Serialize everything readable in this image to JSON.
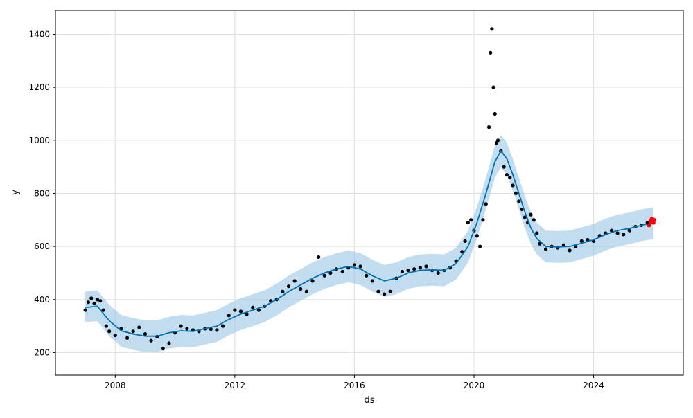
{
  "chart_data": {
    "type": "scatter",
    "xlabel": "ds",
    "ylabel": "y",
    "xlim": [
      2006.0,
      2027.0
    ],
    "ylim": [
      115,
      1490
    ],
    "x_ticks": [
      2008,
      2012,
      2016,
      2020,
      2024
    ],
    "x_tick_labels": [
      "2008",
      "2012",
      "2016",
      "2020",
      "2024"
    ],
    "y_ticks": [
      200,
      400,
      600,
      800,
      1000,
      1200,
      1400
    ],
    "y_tick_labels": [
      "200",
      "400",
      "600",
      "800",
      "1000",
      "1200",
      "1400"
    ],
    "grid": true,
    "legend": "none",
    "colors": {
      "observed": "#000000",
      "forecast_line": "#0072B2",
      "uncertainty_band": "#92C1E3",
      "recent": "#ff0000"
    },
    "series": [
      {
        "name": "",
        "kind": "observed-points",
        "points": [
          [
            2007.0,
            360
          ],
          [
            2007.1,
            390
          ],
          [
            2007.2,
            405
          ],
          [
            2007.3,
            385
          ],
          [
            2007.4,
            400
          ],
          [
            2007.5,
            395
          ],
          [
            2007.6,
            360
          ],
          [
            2007.7,
            300
          ],
          [
            2007.8,
            280
          ],
          [
            2008.0,
            265
          ],
          [
            2008.2,
            290
          ],
          [
            2008.4,
            255
          ],
          [
            2008.6,
            280
          ],
          [
            2008.8,
            295
          ],
          [
            2009.0,
            270
          ],
          [
            2009.2,
            245
          ],
          [
            2009.4,
            260
          ],
          [
            2009.6,
            215
          ],
          [
            2009.8,
            235
          ],
          [
            2010.0,
            275
          ],
          [
            2010.2,
            300
          ],
          [
            2010.4,
            290
          ],
          [
            2010.6,
            285
          ],
          [
            2010.8,
            280
          ],
          [
            2011.0,
            290
          ],
          [
            2011.2,
            288
          ],
          [
            2011.4,
            285
          ],
          [
            2011.6,
            300
          ],
          [
            2011.8,
            340
          ],
          [
            2012.0,
            360
          ],
          [
            2012.2,
            355
          ],
          [
            2012.4,
            345
          ],
          [
            2012.6,
            370
          ],
          [
            2012.8,
            360
          ],
          [
            2013.0,
            375
          ],
          [
            2013.2,
            395
          ],
          [
            2013.4,
            400
          ],
          [
            2013.6,
            430
          ],
          [
            2013.8,
            450
          ],
          [
            2014.0,
            470
          ],
          [
            2014.2,
            440
          ],
          [
            2014.4,
            430
          ],
          [
            2014.6,
            470
          ],
          [
            2014.8,
            560
          ],
          [
            2015.0,
            490
          ],
          [
            2015.2,
            500
          ],
          [
            2015.4,
            515
          ],
          [
            2015.6,
            505
          ],
          [
            2015.8,
            520
          ],
          [
            2016.0,
            530
          ],
          [
            2016.2,
            525
          ],
          [
            2016.4,
            490
          ],
          [
            2016.6,
            470
          ],
          [
            2016.8,
            430
          ],
          [
            2017.0,
            420
          ],
          [
            2017.2,
            430
          ],
          [
            2017.4,
            480
          ],
          [
            2017.6,
            505
          ],
          [
            2017.8,
            510
          ],
          [
            2018.0,
            515
          ],
          [
            2018.2,
            520
          ],
          [
            2018.4,
            525
          ],
          [
            2018.6,
            510
          ],
          [
            2018.8,
            500
          ],
          [
            2019.0,
            510
          ],
          [
            2019.2,
            520
          ],
          [
            2019.4,
            545
          ],
          [
            2019.6,
            580
          ],
          [
            2019.7,
            620
          ],
          [
            2019.8,
            690
          ],
          [
            2019.9,
            700
          ],
          [
            2020.0,
            660
          ],
          [
            2020.1,
            640
          ],
          [
            2020.2,
            600
          ],
          [
            2020.3,
            700
          ],
          [
            2020.4,
            760
          ],
          [
            2020.5,
            1050
          ],
          [
            2020.55,
            1330
          ],
          [
            2020.6,
            1420
          ],
          [
            2020.65,
            1200
          ],
          [
            2020.7,
            1100
          ],
          [
            2020.75,
            990
          ],
          [
            2020.8,
            1000
          ],
          [
            2020.9,
            960
          ],
          [
            2021.0,
            900
          ],
          [
            2021.1,
            870
          ],
          [
            2021.2,
            860
          ],
          [
            2021.3,
            830
          ],
          [
            2021.4,
            800
          ],
          [
            2021.5,
            770
          ],
          [
            2021.6,
            740
          ],
          [
            2021.7,
            710
          ],
          [
            2021.8,
            690
          ],
          [
            2021.9,
            720
          ],
          [
            2022.0,
            700
          ],
          [
            2022.1,
            650
          ],
          [
            2022.2,
            610
          ],
          [
            2022.4,
            590
          ],
          [
            2022.6,
            600
          ],
          [
            2022.8,
            595
          ],
          [
            2023.0,
            605
          ],
          [
            2023.2,
            585
          ],
          [
            2023.4,
            600
          ],
          [
            2023.6,
            620
          ],
          [
            2023.8,
            625
          ],
          [
            2024.0,
            620
          ],
          [
            2024.2,
            640
          ],
          [
            2024.4,
            650
          ],
          [
            2024.6,
            660
          ],
          [
            2024.8,
            650
          ],
          [
            2025.0,
            645
          ],
          [
            2025.2,
            660
          ],
          [
            2025.4,
            675
          ],
          [
            2025.6,
            680
          ],
          [
            2025.8,
            690
          ],
          [
            2025.9,
            695
          ]
        ]
      },
      {
        "name": "",
        "kind": "forecast-line",
        "points": [
          [
            2007.0,
            370
          ],
          [
            2007.4,
            375
          ],
          [
            2007.8,
            320
          ],
          [
            2008.2,
            282
          ],
          [
            2008.6,
            270
          ],
          [
            2009.0,
            262
          ],
          [
            2009.4,
            262
          ],
          [
            2009.8,
            275
          ],
          [
            2010.2,
            282
          ],
          [
            2010.6,
            280
          ],
          [
            2011.0,
            290
          ],
          [
            2011.4,
            300
          ],
          [
            2011.8,
            325
          ],
          [
            2012.2,
            345
          ],
          [
            2012.6,
            360
          ],
          [
            2013.0,
            375
          ],
          [
            2013.4,
            400
          ],
          [
            2013.8,
            430
          ],
          [
            2014.2,
            455
          ],
          [
            2014.6,
            480
          ],
          [
            2015.0,
            500
          ],
          [
            2015.4,
            515
          ],
          [
            2015.8,
            525
          ],
          [
            2016.2,
            515
          ],
          [
            2016.6,
            490
          ],
          [
            2017.0,
            470
          ],
          [
            2017.4,
            480
          ],
          [
            2017.8,
            500
          ],
          [
            2018.2,
            510
          ],
          [
            2018.6,
            512
          ],
          [
            2019.0,
            510
          ],
          [
            2019.4,
            535
          ],
          [
            2019.8,
            600
          ],
          [
            2020.1,
            690
          ],
          [
            2020.4,
            800
          ],
          [
            2020.7,
            920
          ],
          [
            2020.9,
            960
          ],
          [
            2021.1,
            930
          ],
          [
            2021.3,
            870
          ],
          [
            2021.5,
            800
          ],
          [
            2021.7,
            730
          ],
          [
            2021.9,
            670
          ],
          [
            2022.1,
            630
          ],
          [
            2022.4,
            600
          ],
          [
            2022.8,
            598
          ],
          [
            2023.2,
            600
          ],
          [
            2023.6,
            612
          ],
          [
            2024.0,
            625
          ],
          [
            2024.4,
            645
          ],
          [
            2024.8,
            660
          ],
          [
            2025.2,
            668
          ],
          [
            2025.6,
            680
          ],
          [
            2026.0,
            688
          ]
        ]
      },
      {
        "name": "",
        "kind": "uncertainty-band",
        "upper": [
          [
            2007.0,
            430
          ],
          [
            2007.4,
            435
          ],
          [
            2007.8,
            380
          ],
          [
            2008.2,
            342
          ],
          [
            2008.6,
            330
          ],
          [
            2009.0,
            322
          ],
          [
            2009.4,
            322
          ],
          [
            2009.8,
            335
          ],
          [
            2010.2,
            342
          ],
          [
            2010.6,
            340
          ],
          [
            2011.0,
            350
          ],
          [
            2011.4,
            360
          ],
          [
            2011.8,
            385
          ],
          [
            2012.2,
            405
          ],
          [
            2012.6,
            420
          ],
          [
            2013.0,
            435
          ],
          [
            2013.4,
            460
          ],
          [
            2013.8,
            490
          ],
          [
            2014.2,
            515
          ],
          [
            2014.6,
            540
          ],
          [
            2015.0,
            560
          ],
          [
            2015.4,
            575
          ],
          [
            2015.8,
            585
          ],
          [
            2016.2,
            575
          ],
          [
            2016.6,
            550
          ],
          [
            2017.0,
            530
          ],
          [
            2017.4,
            540
          ],
          [
            2017.8,
            560
          ],
          [
            2018.2,
            570
          ],
          [
            2018.6,
            572
          ],
          [
            2019.0,
            570
          ],
          [
            2019.4,
            595
          ],
          [
            2019.8,
            660
          ],
          [
            2020.1,
            750
          ],
          [
            2020.4,
            860
          ],
          [
            2020.7,
            980
          ],
          [
            2020.9,
            1020
          ],
          [
            2021.1,
            990
          ],
          [
            2021.3,
            930
          ],
          [
            2021.5,
            860
          ],
          [
            2021.7,
            790
          ],
          [
            2021.9,
            730
          ],
          [
            2022.1,
            690
          ],
          [
            2022.4,
            660
          ],
          [
            2022.8,
            658
          ],
          [
            2023.2,
            660
          ],
          [
            2023.6,
            672
          ],
          [
            2024.0,
            685
          ],
          [
            2024.4,
            705
          ],
          [
            2024.8,
            720
          ],
          [
            2025.2,
            728
          ],
          [
            2025.6,
            740
          ],
          [
            2026.0,
            748
          ]
        ],
        "lower": [
          [
            2007.0,
            315
          ],
          [
            2007.4,
            318
          ],
          [
            2007.8,
            262
          ],
          [
            2008.2,
            222
          ],
          [
            2008.6,
            210
          ],
          [
            2009.0,
            202
          ],
          [
            2009.4,
            202
          ],
          [
            2009.8,
            215
          ],
          [
            2010.2,
            222
          ],
          [
            2010.6,
            220
          ],
          [
            2011.0,
            230
          ],
          [
            2011.4,
            240
          ],
          [
            2011.8,
            265
          ],
          [
            2012.2,
            285
          ],
          [
            2012.6,
            300
          ],
          [
            2013.0,
            315
          ],
          [
            2013.4,
            340
          ],
          [
            2013.8,
            370
          ],
          [
            2014.2,
            395
          ],
          [
            2014.6,
            420
          ],
          [
            2015.0,
            440
          ],
          [
            2015.4,
            455
          ],
          [
            2015.8,
            465
          ],
          [
            2016.2,
            455
          ],
          [
            2016.6,
            430
          ],
          [
            2017.0,
            410
          ],
          [
            2017.4,
            420
          ],
          [
            2017.8,
            440
          ],
          [
            2018.2,
            450
          ],
          [
            2018.6,
            452
          ],
          [
            2019.0,
            450
          ],
          [
            2019.4,
            475
          ],
          [
            2019.8,
            540
          ],
          [
            2020.1,
            630
          ],
          [
            2020.4,
            740
          ],
          [
            2020.7,
            860
          ],
          [
            2020.9,
            900
          ],
          [
            2021.1,
            870
          ],
          [
            2021.3,
            810
          ],
          [
            2021.5,
            740
          ],
          [
            2021.7,
            670
          ],
          [
            2021.9,
            610
          ],
          [
            2022.1,
            570
          ],
          [
            2022.4,
            540
          ],
          [
            2022.8,
            538
          ],
          [
            2023.2,
            540
          ],
          [
            2023.6,
            552
          ],
          [
            2024.0,
            565
          ],
          [
            2024.4,
            585
          ],
          [
            2024.8,
            600
          ],
          [
            2025.2,
            608
          ],
          [
            2025.6,
            620
          ],
          [
            2026.0,
            628
          ]
        ]
      },
      {
        "name": "",
        "kind": "recent-points",
        "points": [
          [
            2025.85,
            680
          ],
          [
            2025.9,
            695
          ],
          [
            2025.95,
            705
          ],
          [
            2026.0,
            690
          ],
          [
            2026.02,
            700
          ]
        ]
      }
    ]
  }
}
